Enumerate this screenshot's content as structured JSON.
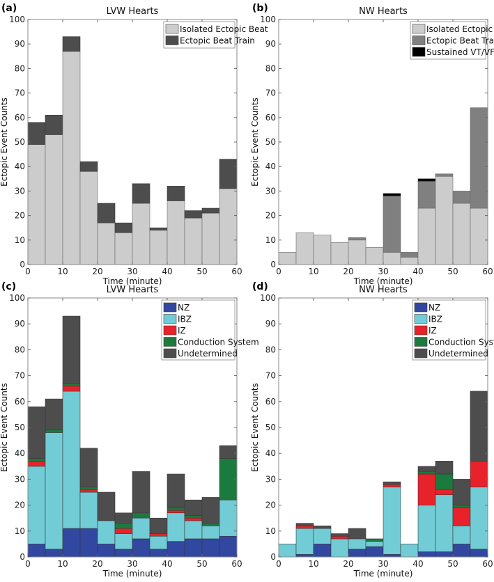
{
  "chart_data": [
    {
      "panel_label": "(a)",
      "type": "bar",
      "stacked": true,
      "title": "LVW Hearts",
      "xlabel": "Time (minute)",
      "ylabel": "Ectopic Event Counts",
      "xlim": [
        0,
        60
      ],
      "ylim": [
        0,
        100
      ],
      "xticks": [
        0,
        10,
        20,
        30,
        40,
        50,
        60
      ],
      "yticks": [
        0,
        10,
        20,
        30,
        40,
        50,
        60,
        70,
        80,
        90,
        100
      ],
      "bin_edges": [
        0,
        5,
        10,
        15,
        20,
        25,
        30,
        35,
        40,
        45,
        50,
        55,
        60
      ],
      "legend_position": "top-right",
      "series": [
        {
          "name": "Isolated Ectopic Beat",
          "color": "#cccccc",
          "values": [
            49,
            53,
            87,
            38,
            17,
            13,
            25,
            14,
            26,
            19,
            21,
            31
          ]
        },
        {
          "name": "Ectopic Beat Train",
          "color": "#4d4d4d",
          "values": [
            9,
            8,
            6,
            4,
            8,
            4,
            8,
            1,
            6,
            3,
            2,
            12
          ]
        }
      ]
    },
    {
      "panel_label": "(b)",
      "type": "bar",
      "stacked": true,
      "title": "NW Hearts",
      "xlabel": "Time (minute)",
      "ylabel": "Ectopic Event Counts",
      "xlim": [
        0,
        60
      ],
      "ylim": [
        0,
        100
      ],
      "xticks": [
        0,
        10,
        20,
        30,
        40,
        50,
        60
      ],
      "yticks": [
        0,
        10,
        20,
        30,
        40,
        50,
        60,
        70,
        80,
        90,
        100
      ],
      "bin_edges": [
        0,
        5,
        10,
        15,
        20,
        25,
        30,
        35,
        40,
        45,
        50,
        55,
        60
      ],
      "legend_position": "top-right",
      "series": [
        {
          "name": "Isolated Ectopic Beat",
          "color": "#cccccc",
          "values": [
            5,
            13,
            12,
            9,
            10,
            7,
            5,
            3,
            23,
            36,
            25,
            23
          ]
        },
        {
          "name": "Ectopic Beat Train",
          "color": "#808080",
          "values": [
            0,
            0,
            0,
            0,
            1,
            0,
            23,
            2,
            11,
            1,
            5,
            41
          ]
        },
        {
          "name": "Sustained VT/VF",
          "color": "#000000",
          "values": [
            0,
            0,
            0,
            0,
            0,
            0,
            1,
            0,
            1,
            0,
            0,
            0
          ]
        }
      ]
    },
    {
      "panel_label": "(c)",
      "type": "bar",
      "stacked": true,
      "title": "LVW Hearts",
      "xlabel": "Time (minute)",
      "ylabel": "Ectopic Event Counts",
      "xlim": [
        0,
        60
      ],
      "ylim": [
        0,
        100
      ],
      "xticks": [
        0,
        10,
        20,
        30,
        40,
        50,
        60
      ],
      "yticks": [
        0,
        10,
        20,
        30,
        40,
        50,
        60,
        70,
        80,
        90,
        100
      ],
      "bin_edges": [
        0,
        5,
        10,
        15,
        20,
        25,
        30,
        35,
        40,
        45,
        50,
        55,
        60
      ],
      "legend_position": "top-right",
      "series": [
        {
          "name": "NZ",
          "color": "#3147a0",
          "values": [
            5,
            3,
            11,
            11,
            5,
            3,
            7,
            3,
            6,
            7,
            7,
            8
          ]
        },
        {
          "name": "IBZ",
          "color": "#72ccd6",
          "values": [
            30,
            45,
            53,
            14,
            9,
            6,
            8,
            5,
            11,
            7,
            5,
            14
          ]
        },
        {
          "name": "IZ",
          "color": "#e8222a",
          "values": [
            2,
            0,
            2,
            1,
            0,
            2,
            0,
            1,
            1,
            1,
            0,
            0
          ]
        },
        {
          "name": "Conduction System",
          "color": "#1b7a3e",
          "values": [
            1,
            1,
            1,
            1,
            0,
            2,
            2,
            0,
            1,
            1,
            1,
            16
          ]
        },
        {
          "name": "Undetermined",
          "color": "#4d4d4d",
          "values": [
            20,
            12,
            26,
            15,
            11,
            4,
            16,
            6,
            13,
            6,
            10,
            5
          ]
        }
      ]
    },
    {
      "panel_label": "(d)",
      "type": "bar",
      "stacked": true,
      "title": "NW Hearts",
      "xlabel": "Time (minute)",
      "ylabel": "Ectopic Event Counts",
      "xlim": [
        0,
        60
      ],
      "ylim": [
        0,
        100
      ],
      "xticks": [
        0,
        10,
        20,
        30,
        40,
        50,
        60
      ],
      "yticks": [
        0,
        10,
        20,
        30,
        40,
        50,
        60,
        70,
        80,
        90,
        100
      ],
      "bin_edges": [
        0,
        5,
        10,
        15,
        20,
        25,
        30,
        35,
        40,
        45,
        50,
        55,
        60
      ],
      "legend_position": "top-right",
      "series": [
        {
          "name": "NZ",
          "color": "#3147a0",
          "values": [
            0,
            1,
            5,
            0,
            3,
            4,
            1,
            0,
            2,
            2,
            5,
            3
          ]
        },
        {
          "name": "IBZ",
          "color": "#72ccd6",
          "values": [
            5,
            10,
            6,
            7,
            4,
            2,
            26,
            5,
            18,
            22,
            7,
            24
          ]
        },
        {
          "name": "IZ",
          "color": "#e8222a",
          "values": [
            0,
            1,
            0,
            1,
            0,
            0,
            1,
            0,
            12,
            2,
            7,
            10
          ]
        },
        {
          "name": "Conduction System",
          "color": "#1b7a3e",
          "values": [
            0,
            0,
            0,
            0,
            0,
            1,
            0,
            0,
            1,
            6,
            1,
            0
          ]
        },
        {
          "name": "Undetermined",
          "color": "#4d4d4d",
          "values": [
            0,
            1,
            1,
            1,
            4,
            0,
            1,
            0,
            2,
            5,
            10,
            27
          ]
        }
      ]
    }
  ]
}
